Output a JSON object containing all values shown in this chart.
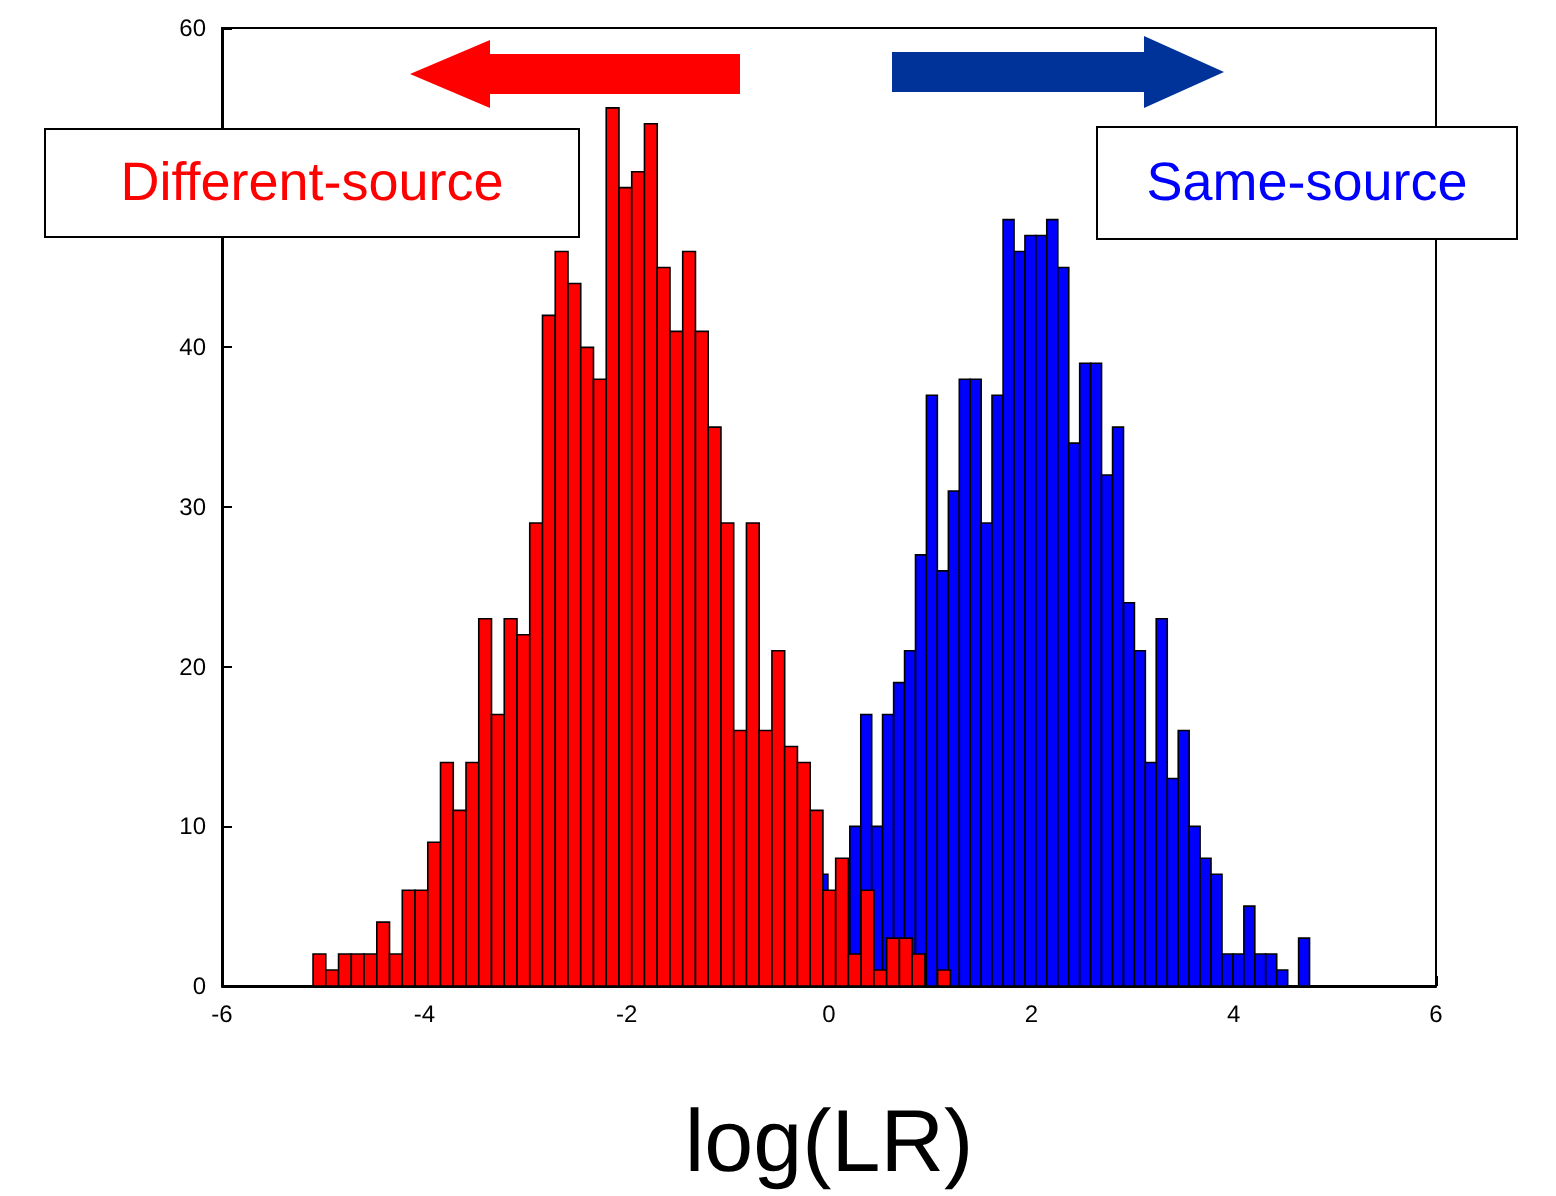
{
  "chart_data": {
    "type": "bar",
    "xlabel": "log(LR)",
    "xlim": [
      -6,
      6
    ],
    "xticks": [
      -6,
      -4,
      -2,
      0,
      2,
      4,
      6
    ],
    "ylim": [
      0,
      60
    ],
    "yticks": [
      0,
      10,
      20,
      30,
      40,
      {
        "value": 50,
        "label": null
      },
      60
    ],
    "grid": false,
    "legend": false,
    "series": [
      {
        "name": "Different-source",
        "color": "#ff0000",
        "x": [
          -5.037,
          -4.911,
          -4.785,
          -4.659,
          -4.533,
          -4.407,
          -4.281,
          -4.155,
          -4.029,
          -3.903,
          -3.777,
          -3.651,
          -3.525,
          -3.399,
          -3.273,
          -3.147,
          -3.021,
          -2.895,
          -2.769,
          -2.643,
          -2.517,
          -2.391,
          -2.265,
          -2.139,
          -2.013,
          -1.887,
          -1.761,
          -1.635,
          -1.509,
          -1.383,
          -1.257,
          -1.131,
          -1.005,
          -0.879,
          -0.753,
          -0.627,
          -0.501,
          -0.375,
          -0.249,
          -0.123,
          0.003,
          0.129,
          0.255,
          0.381,
          0.507,
          0.633,
          0.759,
          0.885,
          1.011,
          1.137
        ],
        "values": [
          2,
          1,
          2,
          2,
          2,
          4,
          2,
          6,
          6,
          9,
          14,
          11,
          14,
          23,
          17,
          23,
          22,
          29,
          42,
          46,
          44,
          40,
          38,
          55,
          50,
          51,
          54,
          45,
          41,
          46,
          41,
          35,
          29,
          16,
          29,
          16,
          21,
          15,
          14,
          11,
          6,
          8,
          2,
          6,
          1,
          3,
          3,
          2,
          0,
          1
        ]
      },
      {
        "name": "Same-source",
        "color": "#0000ff",
        "x": [
          -0.065,
          0.043,
          0.152,
          0.26,
          0.368,
          0.476,
          0.584,
          0.693,
          0.801,
          0.909,
          1.017,
          1.125,
          1.234,
          1.342,
          1.45,
          1.558,
          1.666,
          1.775,
          1.883,
          1.991,
          2.099,
          2.207,
          2.316,
          2.424,
          2.532,
          2.64,
          2.748,
          2.857,
          2.965,
          3.073,
          3.181,
          3.289,
          3.398,
          3.506,
          3.614,
          3.722,
          3.83,
          3.939,
          4.047,
          4.155,
          4.263,
          4.371,
          4.48,
          4.588,
          4.696
        ],
        "values": [
          7,
          null,
          null,
          10,
          17,
          10,
          17,
          19,
          21,
          27,
          37,
          26,
          31,
          38,
          38,
          29,
          37,
          48,
          46,
          47,
          47,
          48,
          45,
          34,
          39,
          39,
          32,
          35,
          24,
          21,
          14,
          23,
          13,
          16,
          10,
          8,
          7,
          2,
          2,
          5,
          2,
          2,
          1,
          0,
          3
        ]
      }
    ]
  }
}
